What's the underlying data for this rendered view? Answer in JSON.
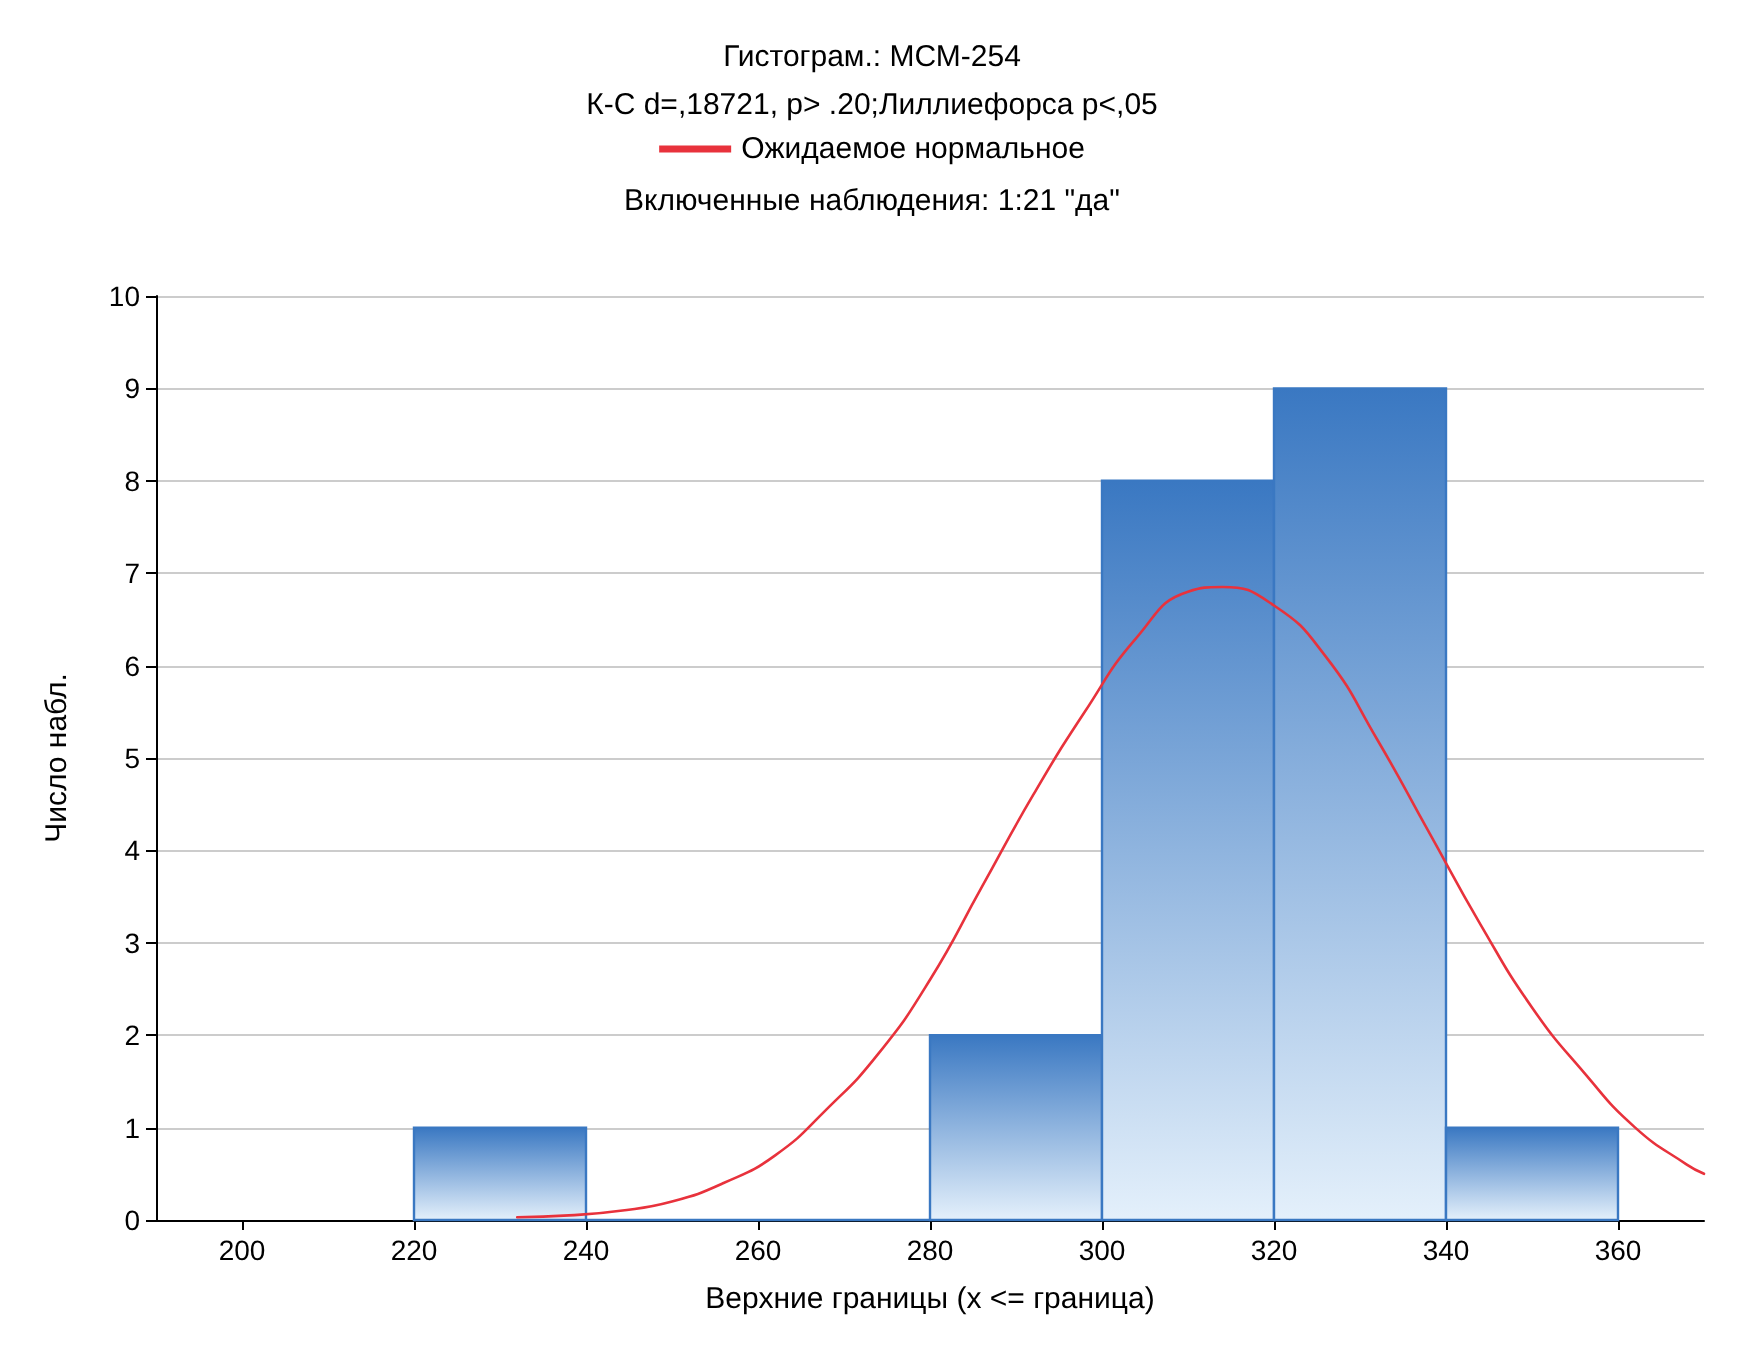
{
  "chart_data": {
    "type": "histogram",
    "title": "Гистограм.: МСМ-254",
    "subtitle": "К-С d=,18721, p> .20;Лиллиефорса p<,05",
    "annotations": [
      "Включенные наблюдения: 1:21 \"да\""
    ],
    "xlabel": "Верхние границы (x <= граница)",
    "ylabel": "Число набл.",
    "bins": [
      220,
      240,
      260,
      280,
      300,
      320,
      340,
      360
    ],
    "series": [
      {
        "color": "#3a78c2",
        "values": [
          1,
          0,
          0,
          2,
          8,
          9,
          1
        ]
      },
      {
        "type": "line",
        "name": "Ожидаемое нормальное",
        "color": "#e8323c",
        "x": [
          232,
          238,
          244,
          250,
          256,
          262,
          268,
          274,
          280,
          286,
          292,
          298,
          304,
          310,
          314,
          320,
          326,
          332,
          338,
          344,
          350,
          356,
          362,
          368,
          370
        ],
        "values": [
          0.03,
          0.05,
          0.1,
          0.2,
          0.4,
          0.7,
          1.2,
          1.8,
          2.6,
          3.6,
          4.6,
          5.5,
          6.3,
          6.8,
          6.85,
          6.65,
          6.1,
          5.2,
          4.2,
          3.2,
          2.3,
          1.6,
          1.0,
          0.6,
          0.5
        ]
      }
    ],
    "xlim": [
      190,
      370
    ],
    "xticks": [
      200,
      220,
      240,
      260,
      280,
      300,
      320,
      340,
      360
    ],
    "ylim": [
      0,
      10
    ],
    "yticks": [
      0,
      1,
      2,
      3,
      4,
      5,
      6,
      7,
      8,
      9,
      10
    ],
    "grid": "y",
    "legend": "top",
    "marker": "none",
    "line_style": "solid"
  }
}
